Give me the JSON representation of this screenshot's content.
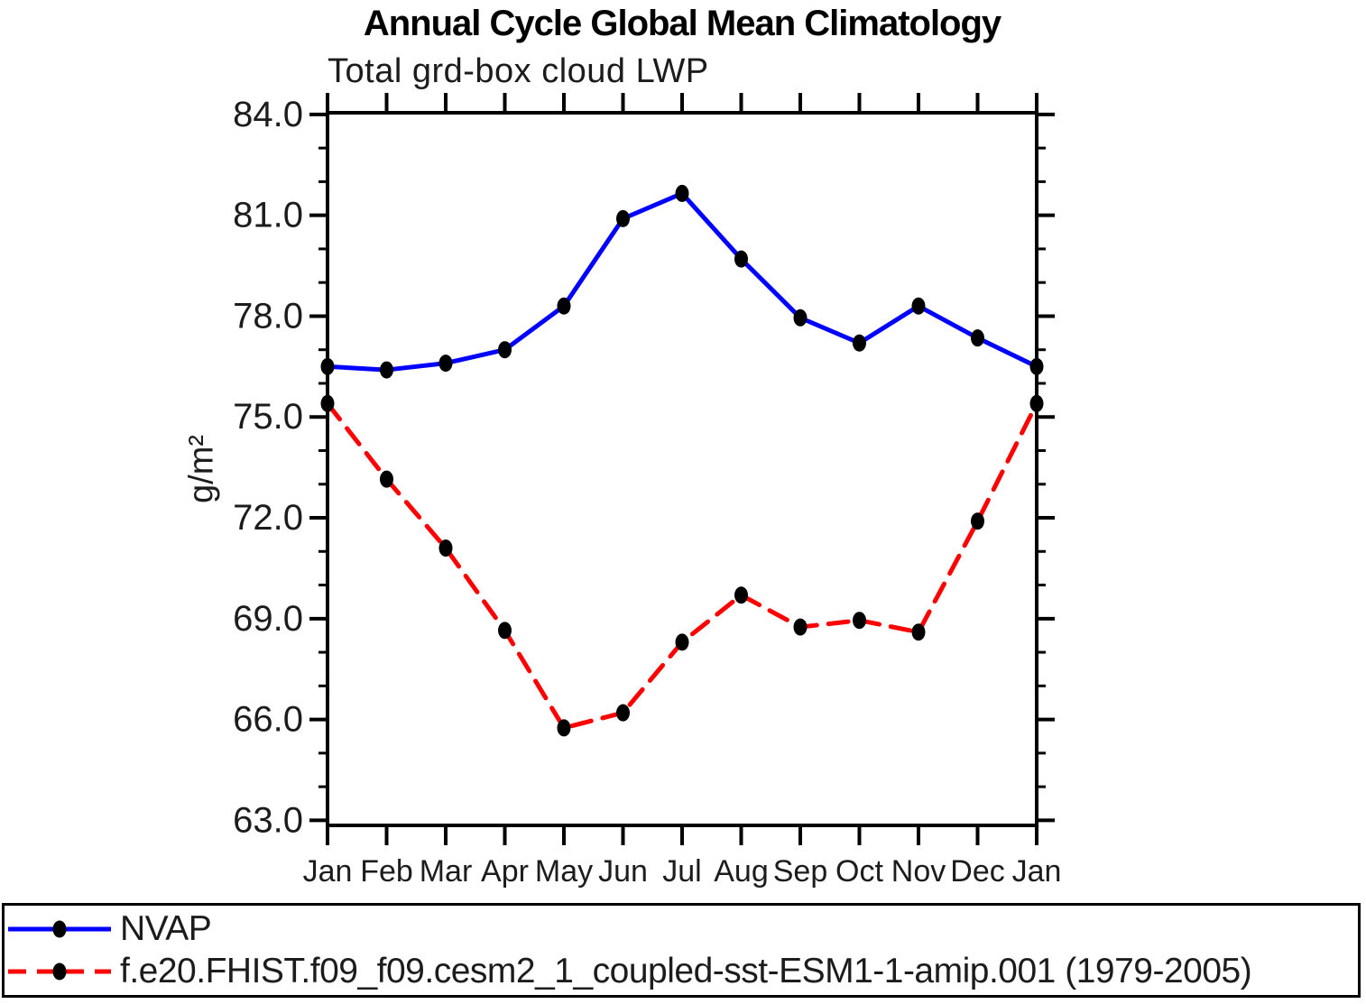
{
  "chart_data": {
    "type": "line",
    "title": "Annual Cycle Global Mean Climatology",
    "subtitle": "Total grd-box cloud LWP",
    "xlabel": "",
    "ylabel": "g/m²",
    "unit": "g/m²",
    "categories": [
      "Jan",
      "Feb",
      "Mar",
      "Apr",
      "May",
      "Jun",
      "Jul",
      "Aug",
      "Sep",
      "Oct",
      "Nov",
      "Dec",
      "Jan"
    ],
    "ylim": [
      62.85,
      84.05
    ],
    "ytick_values": [
      63.0,
      66.0,
      69.0,
      72.0,
      75.0,
      78.0,
      81.0,
      84.0
    ],
    "ytick_labels": [
      "63.0",
      "66.0",
      "69.0",
      "72.0",
      "75.0",
      "78.0",
      "81.0",
      "84.0"
    ],
    "yminor_step": 1.0,
    "grid": false,
    "legend_position": "bottom-outside-box",
    "frame_color": "#000000",
    "marker_color": "#000000",
    "series": [
      {
        "name": "NVAP",
        "color": "#0000ff",
        "style": "solid",
        "marker": "filled-circle",
        "values": [
          76.5,
          76.4,
          76.6,
          77.0,
          78.3,
          80.9,
          81.65,
          79.7,
          77.95,
          77.2,
          78.3,
          77.35,
          76.5
        ]
      },
      {
        "name": "f.e20.FHIST.f09_f09.cesm2_1_coupled-sst-ESM1-1-amip.001 (1979-2005)",
        "color": "#ff0000",
        "style": "dashed",
        "marker": "filled-circle",
        "values": [
          75.4,
          73.15,
          71.1,
          68.65,
          65.75,
          66.2,
          68.3,
          69.7,
          68.75,
          68.95,
          68.6,
          71.9,
          75.4
        ]
      }
    ]
  }
}
